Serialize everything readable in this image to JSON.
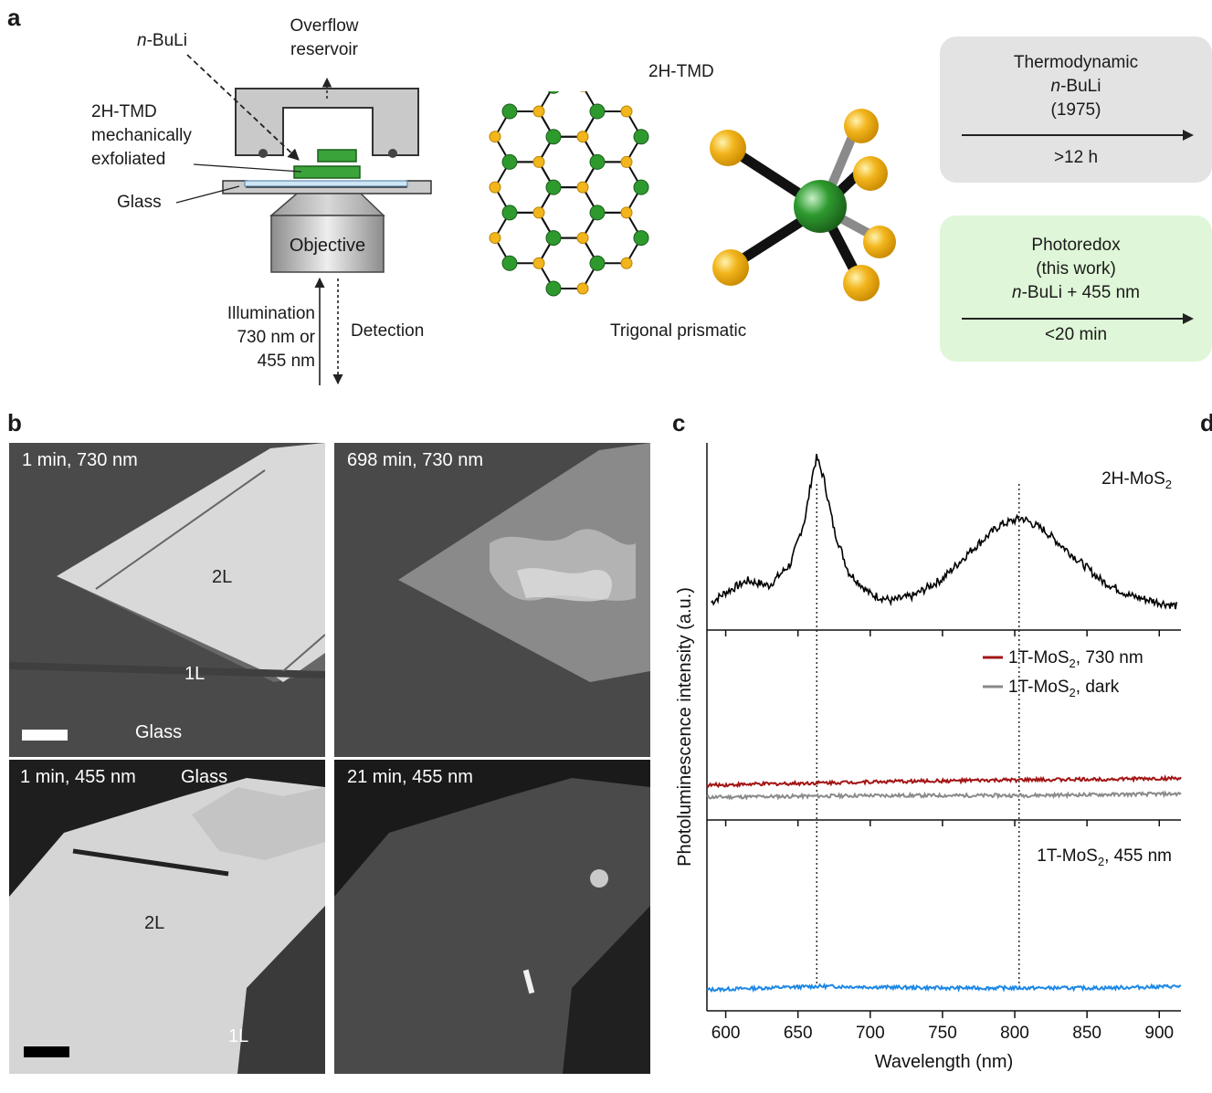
{
  "panel_labels": {
    "a": "a",
    "b": "b",
    "c": "c",
    "d": "d"
  },
  "panel_a": {
    "nbuli": "n-BuLi",
    "overflow": [
      "Overflow",
      "reservoir"
    ],
    "tmd_exfoliated": [
      "2H-TMD",
      "mechanically",
      "exfoliated"
    ],
    "glass": "Glass",
    "objective": "Objective",
    "illumination": [
      "Illumination",
      "730 nm or",
      "455 nm"
    ],
    "detection": "Detection",
    "tmd_title": "2H-TMD",
    "trigonal": "Trigonal prismatic",
    "thermo_box": {
      "lines": [
        "Thermodynamic",
        "n-BuLi",
        "(1975)"
      ],
      "time": ">12 h",
      "color": "#e3e3e3"
    },
    "photo_box": {
      "lines": [
        "Photoredox",
        "(this work)",
        "n-BuLi + 455 nm"
      ],
      "time": "<20 min",
      "color": "#dff7d8"
    },
    "colors": {
      "metal": "#2e9a2e",
      "chalcogen": "#f2b51c",
      "sample": "#3aa33a"
    }
  },
  "panel_b": {
    "tl_label": "1 min, 730 nm",
    "tl_2l": "2L",
    "tl_1l": "1L",
    "tl_glass": "Glass",
    "tr_label": "698 min, 730 nm",
    "bl_label": "1 min, 455 nm",
    "bl_glass": "Glass",
    "bl_2l": "2L",
    "bl_1l": "1L",
    "br_label": "21 min, 455 nm"
  },
  "chart_data": {
    "type": "line",
    "xlabel": "Wavelength (nm)",
    "ylabel": "Photoluminescence intensity (a.u.)",
    "xlim": [
      587,
      915
    ],
    "xticks": [
      600,
      650,
      700,
      750,
      800,
      850,
      900
    ],
    "dotted_lines": [
      663,
      803
    ],
    "panels": [
      {
        "label_main": "2H-MoS",
        "label_sub": "2",
        "label_tail": "",
        "series": [
          {
            "color": "#000000",
            "x": [
              590,
              600,
              615,
              630,
              645,
              655,
              660,
              663,
              668,
              675,
              685,
              700,
              715,
              730,
              750,
              770,
              790,
              805,
              820,
              840,
              860,
              880,
              900,
              912
            ],
            "y": [
              0.12,
              0.18,
              0.25,
              0.22,
              0.35,
              0.62,
              0.88,
              0.98,
              0.85,
              0.55,
              0.3,
              0.17,
              0.13,
              0.16,
              0.26,
              0.43,
              0.58,
              0.62,
              0.55,
              0.4,
              0.25,
              0.16,
              0.12,
              0.1
            ]
          }
        ]
      },
      {
        "legend": [
          {
            "main": "1T-MoS",
            "sub": "2",
            "tail": ", 730 nm",
            "color": "#a31414"
          },
          {
            "main": "1T-MoS",
            "sub": "2",
            "tail": ", dark",
            "color": "#8a8a8a"
          }
        ],
        "series": [
          {
            "color": "#a31414",
            "x": [
              587,
              700,
              800,
              915
            ],
            "y": [
              0.16,
              0.18,
              0.19,
              0.2
            ]
          },
          {
            "color": "#8a8a8a",
            "x": [
              587,
              700,
              800,
              915
            ],
            "y": [
              0.09,
              0.1,
              0.1,
              0.11
            ]
          }
        ]
      },
      {
        "label_main": "1T-MoS",
        "label_sub": "2",
        "label_tail": ", 455 nm",
        "series": [
          {
            "color": "#1e88e5",
            "x": [
              587,
              665,
              750,
              860,
              915
            ],
            "y": [
              0.08,
              0.1,
              0.09,
              0.09,
              0.1
            ]
          }
        ]
      }
    ]
  }
}
